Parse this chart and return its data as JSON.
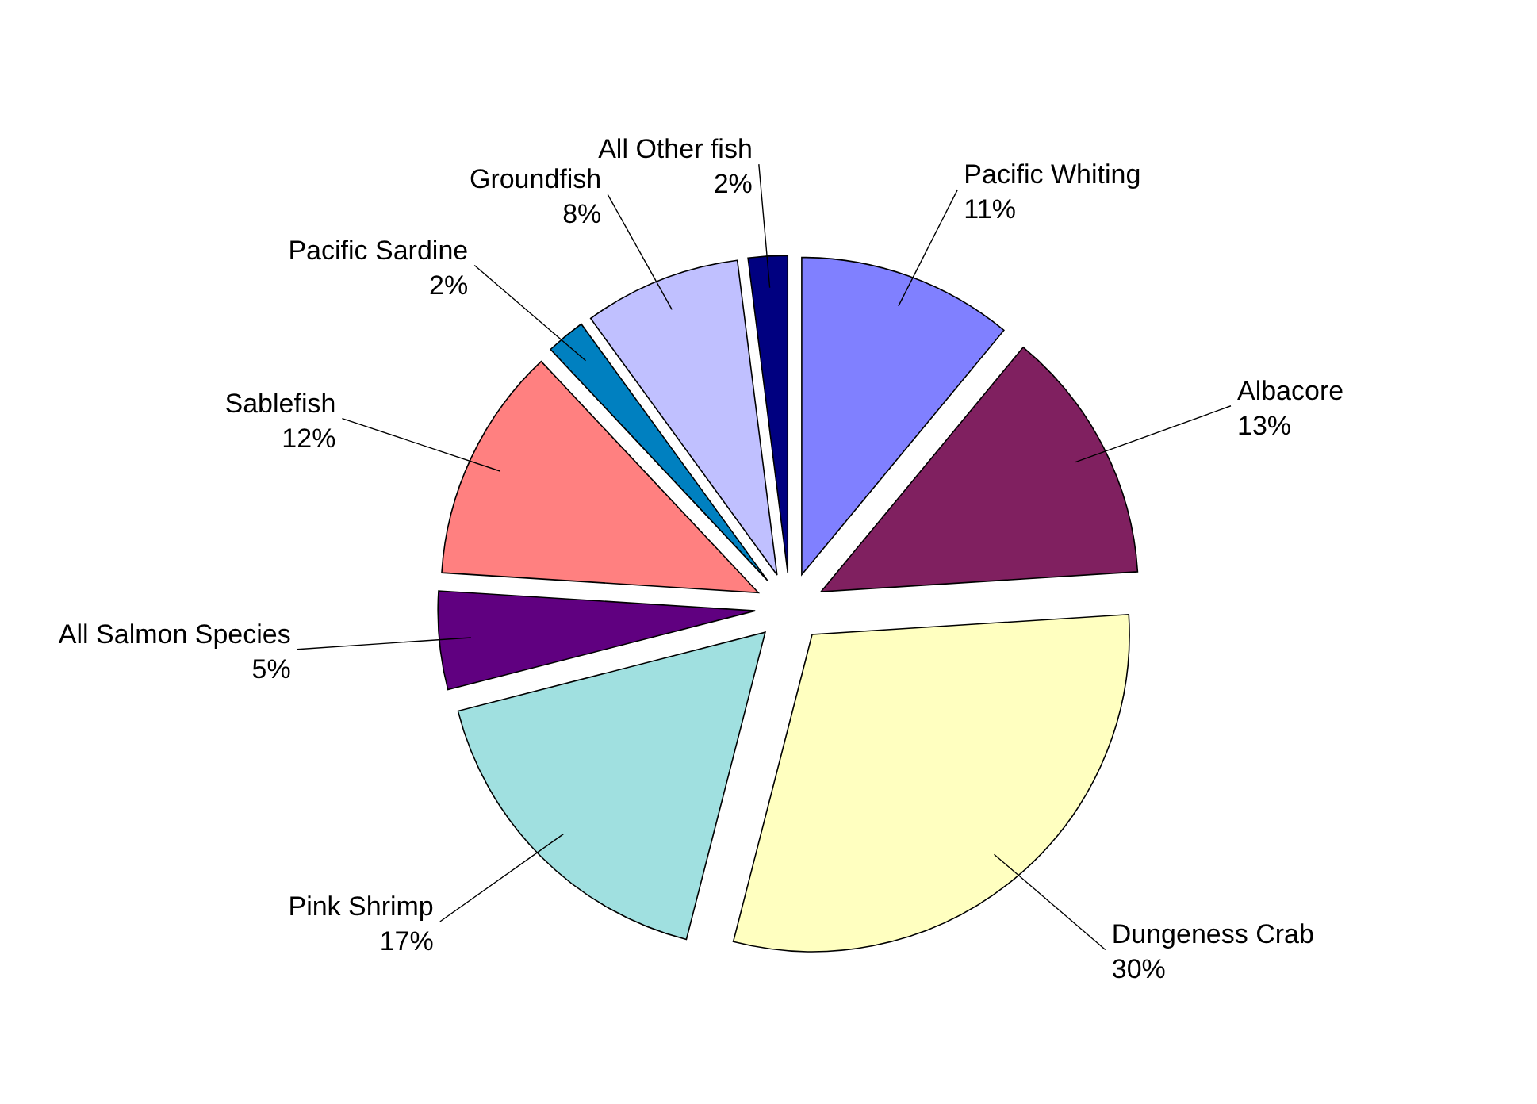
{
  "chart_data": {
    "type": "pie",
    "categories": [
      "Pacific Whiting",
      "Albacore",
      "Dungeness Crab",
      "Pink Shrimp",
      "All Salmon Species",
      "Sablefish",
      "Pacific Sardine",
      "Groundfish",
      "All Other fish"
    ],
    "values": [
      11,
      13,
      30,
      17,
      5,
      12,
      2,
      8,
      2
    ],
    "value_labels": [
      "11%",
      "13%",
      "30%",
      "17%",
      "5%",
      "12%",
      "2%",
      "8%",
      "2%"
    ],
    "colors": [
      "#8080ff",
      "#802060",
      "#ffffc0",
      "#a0e0e0",
      "#600080",
      "#ff8080",
      "#0080c0",
      "#c0c0ff",
      "#000080"
    ]
  }
}
